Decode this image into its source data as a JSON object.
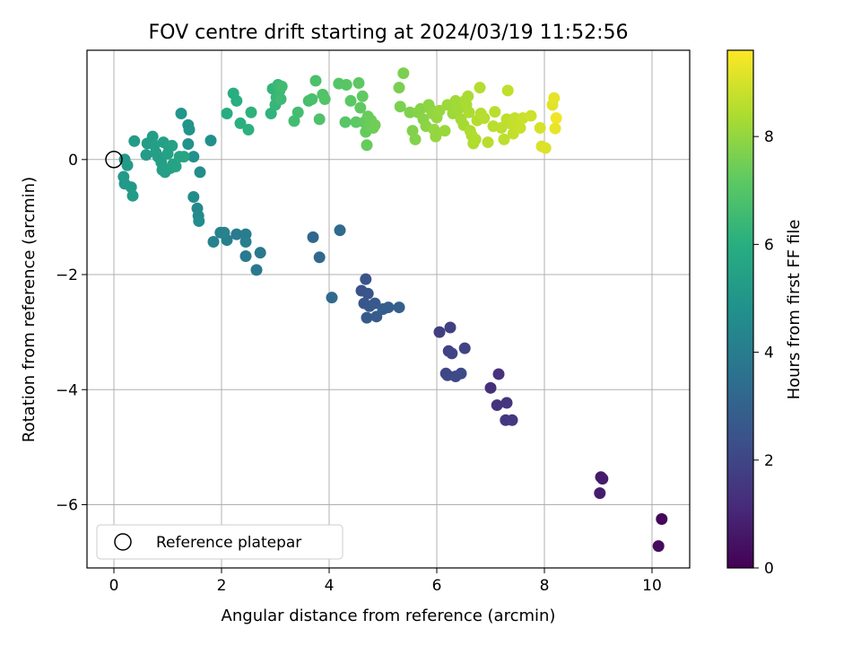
{
  "chart_data": {
    "type": "scatter",
    "title": "FOV centre drift starting at 2024/03/19 11:52:56",
    "xlabel": "Angular distance from reference (arcmin)",
    "ylabel": "Rotation from reference (arcmin)",
    "xlim": [
      -0.5,
      10.7
    ],
    "ylim": [
      -7.1,
      1.9
    ],
    "xticks": [
      0,
      2,
      4,
      6,
      8,
      10
    ],
    "yticks": [
      -6,
      -4,
      -2,
      0
    ],
    "grid": true,
    "legend_position": "lower-left",
    "legend": [
      {
        "label": "Reference platepar",
        "marker": "open-circle"
      }
    ],
    "reference_point": {
      "x": 0,
      "y": 0
    },
    "colorbar": {
      "label": "Hours from first FF file",
      "colormap": "viridis",
      "range": [
        0,
        9.6
      ],
      "ticks": [
        0,
        2,
        4,
        6,
        8
      ]
    },
    "points": [
      {
        "x": 10.18,
        "y": -6.25,
        "c": 0.15
      },
      {
        "x": 10.12,
        "y": -6.72,
        "c": 0.3
      },
      {
        "x": 9.05,
        "y": -5.52,
        "c": 0.65
      },
      {
        "x": 9.08,
        "y": -5.55,
        "c": 0.7
      },
      {
        "x": 9.03,
        "y": -5.8,
        "c": 0.75
      },
      {
        "x": 7.0,
        "y": -3.97,
        "c": 1.3
      },
      {
        "x": 7.15,
        "y": -3.73,
        "c": 1.35
      },
      {
        "x": 7.12,
        "y": -4.27,
        "c": 1.4
      },
      {
        "x": 7.3,
        "y": -4.23,
        "c": 1.45
      },
      {
        "x": 7.28,
        "y": -4.53,
        "c": 1.5
      },
      {
        "x": 7.4,
        "y": -4.53,
        "c": 1.55
      },
      {
        "x": 6.05,
        "y": -3.0,
        "c": 1.75
      },
      {
        "x": 6.25,
        "y": -2.92,
        "c": 1.8
      },
      {
        "x": 6.22,
        "y": -3.33,
        "c": 1.85
      },
      {
        "x": 6.28,
        "y": -3.37,
        "c": 1.9
      },
      {
        "x": 6.52,
        "y": -3.28,
        "c": 1.95
      },
      {
        "x": 6.17,
        "y": -3.72,
        "c": 2.0
      },
      {
        "x": 6.2,
        "y": -3.75,
        "c": 2.05
      },
      {
        "x": 6.35,
        "y": -3.77,
        "c": 2.1
      },
      {
        "x": 6.45,
        "y": -3.72,
        "c": 2.15
      },
      {
        "x": 4.6,
        "y": -2.28,
        "c": 2.4
      },
      {
        "x": 4.68,
        "y": -2.08,
        "c": 2.45
      },
      {
        "x": 4.72,
        "y": -2.33,
        "c": 2.5
      },
      {
        "x": 4.65,
        "y": -2.5,
        "c": 2.55
      },
      {
        "x": 4.75,
        "y": -2.55,
        "c": 2.6
      },
      {
        "x": 4.85,
        "y": -2.5,
        "c": 2.65
      },
      {
        "x": 4.7,
        "y": -2.75,
        "c": 2.7
      },
      {
        "x": 4.88,
        "y": -2.73,
        "c": 2.75
      },
      {
        "x": 5.0,
        "y": -2.6,
        "c": 2.8
      },
      {
        "x": 5.1,
        "y": -2.57,
        "c": 2.85
      },
      {
        "x": 5.3,
        "y": -2.57,
        "c": 2.9
      },
      {
        "x": 3.7,
        "y": -1.35,
        "c": 3.2
      },
      {
        "x": 3.82,
        "y": -1.7,
        "c": 3.25
      },
      {
        "x": 4.05,
        "y": -2.4,
        "c": 3.3
      },
      {
        "x": 4.2,
        "y": -1.23,
        "c": 3.35
      },
      {
        "x": 2.65,
        "y": -1.92,
        "c": 3.8
      },
      {
        "x": 2.72,
        "y": -1.62,
        "c": 3.85
      },
      {
        "x": 2.45,
        "y": -1.68,
        "c": 3.9
      },
      {
        "x": 2.28,
        "y": -1.3,
        "c": 3.95
      },
      {
        "x": 2.45,
        "y": -1.3,
        "c": 4.0
      },
      {
        "x": 2.45,
        "y": -1.43,
        "c": 4.05
      },
      {
        "x": 2.1,
        "y": -1.4,
        "c": 4.1
      },
      {
        "x": 1.98,
        "y": -1.27,
        "c": 4.15
      },
      {
        "x": 2.05,
        "y": -1.27,
        "c": 4.2
      },
      {
        "x": 1.85,
        "y": -1.43,
        "c": 4.25
      },
      {
        "x": 1.55,
        "y": -0.85,
        "c": 4.5
      },
      {
        "x": 1.57,
        "y": -0.98,
        "c": 4.55
      },
      {
        "x": 1.58,
        "y": -1.07,
        "c": 4.6
      },
      {
        "x": 1.48,
        "y": -0.65,
        "c": 4.65
      },
      {
        "x": 1.6,
        "y": -0.22,
        "c": 4.7
      },
      {
        "x": 1.8,
        "y": 0.33,
        "c": 4.75
      },
      {
        "x": 1.48,
        "y": 0.05,
        "c": 4.8
      },
      {
        "x": 1.38,
        "y": 0.27,
        "c": 4.85
      },
      {
        "x": 1.4,
        "y": 0.52,
        "c": 4.9
      },
      {
        "x": 1.38,
        "y": 0.6,
        "c": 4.95
      },
      {
        "x": 1.25,
        "y": 0.8,
        "c": 5.0
      },
      {
        "x": 0.2,
        "y": 0.0,
        "c": 5.1
      },
      {
        "x": 0.18,
        "y": -0.3,
        "c": 5.12
      },
      {
        "x": 0.2,
        "y": -0.42,
        "c": 5.14
      },
      {
        "x": 0.25,
        "y": -0.1,
        "c": 5.16
      },
      {
        "x": 0.32,
        "y": -0.48,
        "c": 5.18
      },
      {
        "x": 0.35,
        "y": -0.63,
        "c": 5.2
      },
      {
        "x": 0.38,
        "y": 0.32,
        "c": 5.22
      },
      {
        "x": 0.6,
        "y": 0.08,
        "c": 5.25
      },
      {
        "x": 0.62,
        "y": 0.28,
        "c": 5.28
      },
      {
        "x": 0.72,
        "y": 0.4,
        "c": 5.3
      },
      {
        "x": 0.75,
        "y": 0.25,
        "c": 5.32
      },
      {
        "x": 0.78,
        "y": 0.12,
        "c": 5.34
      },
      {
        "x": 0.82,
        "y": 0.05,
        "c": 5.36
      },
      {
        "x": 0.88,
        "y": -0.05,
        "c": 5.38
      },
      {
        "x": 0.9,
        "y": -0.18,
        "c": 5.4
      },
      {
        "x": 0.92,
        "y": 0.3,
        "c": 5.42
      },
      {
        "x": 0.95,
        "y": -0.22,
        "c": 5.44
      },
      {
        "x": 1.0,
        "y": 0.1,
        "c": 5.46
      },
      {
        "x": 1.02,
        "y": 0.22,
        "c": 5.48
      },
      {
        "x": 1.05,
        "y": -0.15,
        "c": 5.5
      },
      {
        "x": 1.08,
        "y": 0.24,
        "c": 5.52
      },
      {
        "x": 1.1,
        "y": -0.08,
        "c": 5.54
      },
      {
        "x": 1.15,
        "y": -0.12,
        "c": 5.56
      },
      {
        "x": 1.22,
        "y": 0.05,
        "c": 5.58
      },
      {
        "x": 1.3,
        "y": 0.05,
        "c": 5.6
      },
      {
        "x": 2.1,
        "y": 0.8,
        "c": 5.9
      },
      {
        "x": 2.22,
        "y": 1.15,
        "c": 5.95
      },
      {
        "x": 2.28,
        "y": 1.02,
        "c": 6.0
      },
      {
        "x": 2.35,
        "y": 0.63,
        "c": 6.05
      },
      {
        "x": 2.5,
        "y": 0.52,
        "c": 6.1
      },
      {
        "x": 2.55,
        "y": 0.82,
        "c": 6.15
      },
      {
        "x": 2.92,
        "y": 0.8,
        "c": 6.2
      },
      {
        "x": 2.95,
        "y": 1.23,
        "c": 6.25
      },
      {
        "x": 3.0,
        "y": 0.95,
        "c": 6.3
      },
      {
        "x": 3.02,
        "y": 1.08,
        "c": 6.35
      },
      {
        "x": 3.05,
        "y": 1.3,
        "c": 6.4
      },
      {
        "x": 3.08,
        "y": 1.2,
        "c": 6.45
      },
      {
        "x": 3.1,
        "y": 1.05,
        "c": 6.5
      },
      {
        "x": 3.12,
        "y": 1.27,
        "c": 6.55
      },
      {
        "x": 3.35,
        "y": 0.67,
        "c": 6.6
      },
      {
        "x": 3.42,
        "y": 0.82,
        "c": 6.65
      },
      {
        "x": 3.62,
        "y": 1.02,
        "c": 6.7
      },
      {
        "x": 3.68,
        "y": 1.05,
        "c": 6.75
      },
      {
        "x": 3.75,
        "y": 1.37,
        "c": 6.8
      },
      {
        "x": 3.82,
        "y": 0.7,
        "c": 6.85
      },
      {
        "x": 3.88,
        "y": 1.13,
        "c": 6.9
      },
      {
        "x": 3.92,
        "y": 1.05,
        "c": 6.95
      },
      {
        "x": 4.18,
        "y": 1.32,
        "c": 7.0
      },
      {
        "x": 4.3,
        "y": 0.65,
        "c": 7.05
      },
      {
        "x": 4.32,
        "y": 1.3,
        "c": 7.08
      },
      {
        "x": 4.4,
        "y": 1.02,
        "c": 7.11
      },
      {
        "x": 4.5,
        "y": 0.65,
        "c": 7.14
      },
      {
        "x": 4.55,
        "y": 1.33,
        "c": 7.17
      },
      {
        "x": 4.58,
        "y": 0.9,
        "c": 7.2
      },
      {
        "x": 4.62,
        "y": 1.1,
        "c": 7.23
      },
      {
        "x": 4.65,
        "y": 0.65,
        "c": 7.26
      },
      {
        "x": 4.68,
        "y": 0.48,
        "c": 7.29
      },
      {
        "x": 4.7,
        "y": 0.25,
        "c": 7.32
      },
      {
        "x": 4.72,
        "y": 0.75,
        "c": 7.35
      },
      {
        "x": 4.75,
        "y": 0.58,
        "c": 7.38
      },
      {
        "x": 4.78,
        "y": 0.68,
        "c": 7.41
      },
      {
        "x": 4.82,
        "y": 0.55,
        "c": 7.44
      },
      {
        "x": 4.85,
        "y": 0.6,
        "c": 7.47
      },
      {
        "x": 5.3,
        "y": 1.25,
        "c": 7.6
      },
      {
        "x": 5.32,
        "y": 0.92,
        "c": 7.63
      },
      {
        "x": 5.38,
        "y": 1.5,
        "c": 7.66
      },
      {
        "x": 5.5,
        "y": 0.82,
        "c": 7.7
      },
      {
        "x": 5.55,
        "y": 0.5,
        "c": 7.73
      },
      {
        "x": 5.6,
        "y": 0.35,
        "c": 7.76
      },
      {
        "x": 5.65,
        "y": 0.82,
        "c": 7.79
      },
      {
        "x": 5.7,
        "y": 0.88,
        "c": 7.82
      },
      {
        "x": 5.75,
        "y": 0.7,
        "c": 7.85
      },
      {
        "x": 5.8,
        "y": 0.58,
        "c": 7.88
      },
      {
        "x": 5.85,
        "y": 0.95,
        "c": 7.91
      },
      {
        "x": 5.88,
        "y": 0.88,
        "c": 7.94
      },
      {
        "x": 5.92,
        "y": 0.8,
        "c": 7.97
      },
      {
        "x": 5.95,
        "y": 0.52,
        "c": 8.0
      },
      {
        "x": 5.98,
        "y": 0.4,
        "c": 8.02
      },
      {
        "x": 6.0,
        "y": 0.73,
        "c": 8.05
      },
      {
        "x": 6.05,
        "y": 0.85,
        "c": 8.08
      },
      {
        "x": 6.15,
        "y": 0.5,
        "c": 8.11
      },
      {
        "x": 6.2,
        "y": 0.95,
        "c": 8.14
      },
      {
        "x": 6.3,
        "y": 0.8,
        "c": 8.17
      },
      {
        "x": 6.35,
        "y": 1.02,
        "c": 8.2
      },
      {
        "x": 6.4,
        "y": 0.88,
        "c": 8.22
      },
      {
        "x": 6.45,
        "y": 0.7,
        "c": 8.25
      },
      {
        "x": 6.5,
        "y": 0.6,
        "c": 8.28
      },
      {
        "x": 6.52,
        "y": 1.02,
        "c": 8.3
      },
      {
        "x": 6.55,
        "y": 0.95,
        "c": 8.32
      },
      {
        "x": 6.58,
        "y": 1.1,
        "c": 8.35
      },
      {
        "x": 6.6,
        "y": 0.82,
        "c": 8.38
      },
      {
        "x": 6.62,
        "y": 0.5,
        "c": 8.4
      },
      {
        "x": 6.65,
        "y": 0.42,
        "c": 8.42
      },
      {
        "x": 6.68,
        "y": 0.28,
        "c": 8.44
      },
      {
        "x": 6.72,
        "y": 0.35,
        "c": 8.46
      },
      {
        "x": 6.75,
        "y": 0.68,
        "c": 8.48
      },
      {
        "x": 6.8,
        "y": 1.25,
        "c": 8.5
      },
      {
        "x": 6.82,
        "y": 0.8,
        "c": 8.52
      },
      {
        "x": 6.88,
        "y": 0.72,
        "c": 8.54
      },
      {
        "x": 6.95,
        "y": 0.3,
        "c": 8.56
      },
      {
        "x": 7.05,
        "y": 0.58,
        "c": 8.58
      },
      {
        "x": 7.08,
        "y": 0.83,
        "c": 8.6
      },
      {
        "x": 7.2,
        "y": 0.55,
        "c": 8.62
      },
      {
        "x": 7.25,
        "y": 0.35,
        "c": 8.64
      },
      {
        "x": 7.3,
        "y": 0.7,
        "c": 8.66
      },
      {
        "x": 7.32,
        "y": 1.2,
        "c": 8.68
      },
      {
        "x": 7.38,
        "y": 0.62,
        "c": 8.7
      },
      {
        "x": 7.42,
        "y": 0.45,
        "c": 8.72
      },
      {
        "x": 7.45,
        "y": 0.72,
        "c": 8.74
      },
      {
        "x": 7.48,
        "y": 0.58,
        "c": 8.76
      },
      {
        "x": 7.55,
        "y": 0.55,
        "c": 8.8
      },
      {
        "x": 7.6,
        "y": 0.72,
        "c": 8.84
      },
      {
        "x": 7.75,
        "y": 0.76,
        "c": 8.9
      },
      {
        "x": 7.92,
        "y": 0.55,
        "c": 9.0
      },
      {
        "x": 7.95,
        "y": 0.23,
        "c": 9.05
      },
      {
        "x": 8.02,
        "y": 0.2,
        "c": 9.1
      },
      {
        "x": 8.15,
        "y": 0.95,
        "c": 9.2
      },
      {
        "x": 8.18,
        "y": 1.07,
        "c": 9.25
      },
      {
        "x": 8.2,
        "y": 0.54,
        "c": 9.3
      },
      {
        "x": 8.22,
        "y": 0.72,
        "c": 9.4
      }
    ]
  }
}
